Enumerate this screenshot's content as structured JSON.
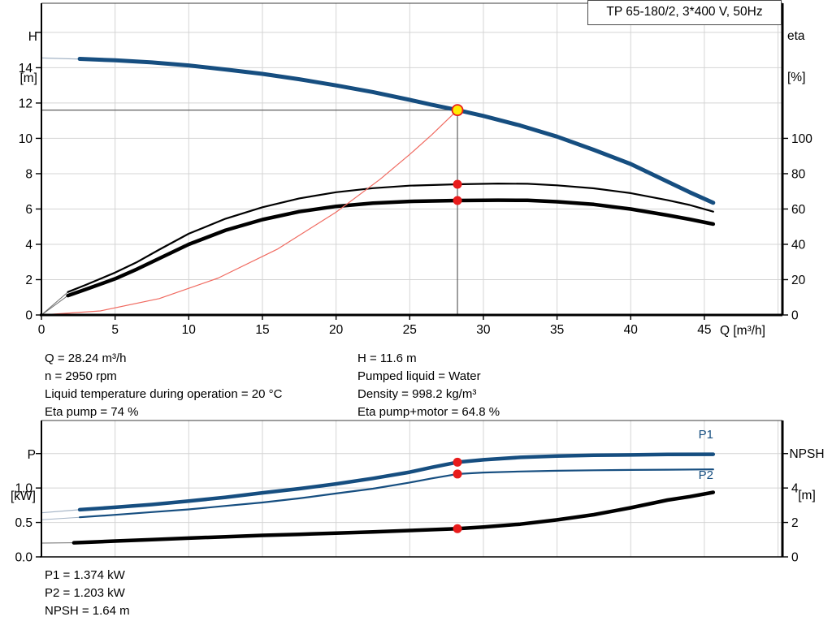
{
  "title_box": "TP 65-180/2, 3*400 V, 50Hz",
  "axis_corner_labels": {
    "top_left": [
      "H",
      "[m]"
    ],
    "top_right": [
      "eta",
      "[%]"
    ],
    "bottom_left": [
      "P",
      "[kW]"
    ],
    "bottom_right": [
      "NPSH",
      "[m]"
    ]
  },
  "info": {
    "left": [
      "Q = 28.24 m³/h",
      "n = 2950 rpm",
      "Liquid temperature during operation = 20 °C",
      "Eta pump = 74 %"
    ],
    "right": [
      "H = 11.6 m",
      "Pumped liquid = Water",
      "Density = 998.2 kg/m³",
      "Eta pump+motor = 64.8 %"
    ],
    "bottom": [
      "P1 = 1.374 kW",
      "P2 = 1.203 kW",
      "NPSH = 1.64 m"
    ]
  },
  "colors": {
    "curve_blue": "#164E80",
    "curve_black": "#000000",
    "system_red": "#f06a60",
    "marker_red": "#e81c1c",
    "duty_yellow": "#ffec00",
    "grid": "#d4d4d4",
    "guide": "#5f5f5f",
    "ext_blue": "#a4b4c6",
    "ext_gray": "#6e6e6e"
  },
  "chart_data": [
    {
      "type": "line",
      "title": "TP 65-180/2, 3*400 V, 50Hz",
      "xlabel": "Q [m³/h]",
      "ylabel_left": "H [m]",
      "ylabel_right": "eta [%]",
      "xlim": [
        0,
        50.3
      ],
      "ylim_left": [
        0,
        17.65
      ],
      "ylim_right": [
        0,
        176.5
      ],
      "grid": {
        "x": [
          5,
          10,
          15,
          20,
          25,
          30,
          35,
          40,
          45,
          50
        ],
        "left": [
          2,
          4,
          6,
          8,
          10,
          12,
          14,
          16
        ]
      },
      "axes": {
        "x": {
          "ticks": [
            0,
            5,
            10,
            15,
            20,
            25,
            30,
            35,
            40,
            45
          ],
          "tick_labels": [
            "0",
            "5",
            "10",
            "15",
            "20",
            "25",
            "30",
            "35",
            "40",
            "45"
          ]
        },
        "left": {
          "ticks": [
            0,
            2,
            4,
            6,
            8,
            10,
            12,
            14
          ],
          "tick_labels": [
            "0",
            "2",
            "4",
            "6",
            "8",
            "10",
            "12",
            "14"
          ],
          "extra_ticks": [
            16
          ]
        },
        "right": {
          "ticks": [
            0,
            20,
            40,
            60,
            80,
            100
          ],
          "tick_labels": [
            "0",
            "20",
            "40",
            "60",
            "80",
            "100"
          ],
          "extra_ticks": []
        }
      },
      "duty_point": {
        "Q": 28.24,
        "H": 11.6,
        "eta_pump": 74,
        "eta_pump_motor": 64.8
      },
      "series": [
        {
          "name": "hq-curve-ext",
          "axis": "left",
          "color": "#a4b4c6",
          "width": 1.2,
          "points": [
            [
              0,
              14.55
            ],
            [
              3,
              14.48
            ]
          ]
        },
        {
          "name": "hq-curve",
          "axis": "left",
          "color": "#164E80",
          "width": 5,
          "points": [
            [
              2.6,
              14.5
            ],
            [
              5,
              14.42
            ],
            [
              7.5,
              14.3
            ],
            [
              10,
              14.13
            ],
            [
              12.5,
              13.9
            ],
            [
              15,
              13.65
            ],
            [
              17.5,
              13.35
            ],
            [
              20,
              13.0
            ],
            [
              22.5,
              12.62
            ],
            [
              25,
              12.18
            ],
            [
              26.5,
              11.9
            ],
            [
              28.24,
              11.6
            ],
            [
              30,
              11.27
            ],
            [
              32.5,
              10.73
            ],
            [
              35,
              10.1
            ],
            [
              37.5,
              9.35
            ],
            [
              40,
              8.55
            ],
            [
              42.5,
              7.55
            ],
            [
              44,
              6.95
            ],
            [
              45.6,
              6.35
            ]
          ]
        },
        {
          "name": "eta-pump-curve-ext",
          "axis": "right",
          "color": "#6e6e6e",
          "width": 1,
          "points": [
            [
              0,
              0
            ],
            [
              1.8,
              13
            ]
          ]
        },
        {
          "name": "eta-pump-curve",
          "axis": "right",
          "color": "#000000",
          "width": 2.2,
          "points": [
            [
              1.8,
              13
            ],
            [
              3,
              17
            ],
            [
              5,
              24
            ],
            [
              6.5,
              30
            ],
            [
              8,
              37
            ],
            [
              10,
              46
            ],
            [
              12.5,
              54.5
            ],
            [
              15,
              61
            ],
            [
              17.5,
              66
            ],
            [
              20,
              69.5
            ],
            [
              22.5,
              71.8
            ],
            [
              25,
              73.2
            ],
            [
              28.24,
              74
            ],
            [
              31,
              74.4
            ],
            [
              33,
              74.3
            ],
            [
              35,
              73.4
            ],
            [
              37.5,
              71.7
            ],
            [
              40,
              69
            ],
            [
              42.5,
              65
            ],
            [
              44,
              62.3
            ],
            [
              45.6,
              58.5
            ]
          ]
        },
        {
          "name": "eta-pump-motor-curve-ext",
          "axis": "right",
          "color": "#6e6e6e",
          "width": 1,
          "points": [
            [
              0,
              0
            ],
            [
              1.8,
              11
            ]
          ]
        },
        {
          "name": "eta-pump-motor-curve",
          "axis": "right",
          "color": "#000000",
          "width": 4.5,
          "points": [
            [
              1.8,
              11
            ],
            [
              3,
              14.5
            ],
            [
              5,
              20.5
            ],
            [
              6.5,
              26
            ],
            [
              8,
              32
            ],
            [
              10,
              40
            ],
            [
              12.5,
              48
            ],
            [
              15,
              54
            ],
            [
              17.5,
              58.5
            ],
            [
              20,
              61.5
            ],
            [
              22.5,
              63.3
            ],
            [
              25,
              64.3
            ],
            [
              28.24,
              64.8
            ],
            [
              31,
              65
            ],
            [
              33,
              64.9
            ],
            [
              35,
              64.1
            ],
            [
              37.5,
              62.6
            ],
            [
              40,
              60
            ],
            [
              42.5,
              56.5
            ],
            [
              44,
              54.2
            ],
            [
              45.6,
              51.5
            ]
          ]
        },
        {
          "name": "system-curve",
          "axis": "left",
          "color": "#f06a60",
          "width": 1.2,
          "points": [
            [
              0,
              0
            ],
            [
              4,
              0.23
            ],
            [
              8,
              0.93
            ],
            [
              12,
              2.09
            ],
            [
              16,
              3.72
            ],
            [
              20,
              5.82
            ],
            [
              23,
              7.69
            ],
            [
              25,
              9.09
            ],
            [
              26.5,
              10.21
            ],
            [
              28.24,
              11.6
            ]
          ]
        }
      ],
      "guides": [
        {
          "type": "h",
          "axis": "left",
          "y": 11.6,
          "x1": 0,
          "x2": 28.24
        },
        {
          "type": "v",
          "axis": "left",
          "x": 28.24,
          "y1": 11.6,
          "y2": 0
        }
      ],
      "markers": [
        {
          "name": "eta-pump-duty-dot",
          "x": 28.24,
          "y": 74,
          "axis": "right",
          "r": 5.5,
          "fill": "#e81c1c",
          "stroke": "none",
          "sw": 0
        },
        {
          "name": "eta-pump-motor-duty-dot",
          "x": 28.24,
          "y": 64.8,
          "axis": "right",
          "r": 5.5,
          "fill": "#e81c1c",
          "stroke": "none",
          "sw": 0
        },
        {
          "name": "duty-point-marker",
          "x": 28.24,
          "y": 11.6,
          "axis": "left",
          "r": 6.5,
          "fill": "#ffec00",
          "stroke": "#e81c1c",
          "sw": 1.8
        }
      ],
      "labels": []
    },
    {
      "type": "line",
      "title": "",
      "xlabel": "",
      "ylabel_left": "P [kW]",
      "ylabel_right": "NPSH [m]",
      "xlim": [
        0,
        50.3
      ],
      "ylim_left": [
        0,
        1.98
      ],
      "ylim_right": [
        0,
        7.92
      ],
      "grid": {
        "x": [
          5,
          10,
          15,
          20,
          25,
          30,
          35,
          40,
          45,
          50
        ],
        "left": [
          0.5,
          1.0,
          1.5
        ]
      },
      "axes": {
        "x": {
          "ticks": [],
          "tick_labels": []
        },
        "left": {
          "ticks": [
            0,
            0.5,
            1.0
          ],
          "tick_labels": [
            "0.0",
            "0.5",
            "1.0"
          ],
          "extra_ticks": [
            1.5
          ]
        },
        "right": {
          "ticks": [
            0,
            2,
            4
          ],
          "tick_labels": [
            "0",
            "2",
            "4"
          ],
          "extra_ticks": [
            6
          ]
        }
      },
      "duty_point": {
        "Q": 28.24,
        "P1_kW": 1.374,
        "P2_kW": 1.203,
        "NPSH_m": 1.64
      },
      "series": [
        {
          "name": "p1-curve-ext",
          "axis": "left",
          "color": "#a4b4c6",
          "width": 1.2,
          "points": [
            [
              0,
              0.64
            ],
            [
              2.6,
              0.685
            ]
          ]
        },
        {
          "name": "p1-curve",
          "axis": "left",
          "color": "#164E80",
          "width": 4.5,
          "points": [
            [
              2.6,
              0.685
            ],
            [
              5,
              0.72
            ],
            [
              7.5,
              0.76
            ],
            [
              10,
              0.81
            ],
            [
              12.5,
              0.865
            ],
            [
              15,
              0.93
            ],
            [
              17.5,
              0.99
            ],
            [
              20,
              1.06
            ],
            [
              22.5,
              1.14
            ],
            [
              25,
              1.23
            ],
            [
              26.5,
              1.3
            ],
            [
              28.24,
              1.374
            ],
            [
              30,
              1.41
            ],
            [
              32.5,
              1.445
            ],
            [
              35,
              1.465
            ],
            [
              37.5,
              1.475
            ],
            [
              40,
              1.48
            ],
            [
              42.5,
              1.487
            ],
            [
              45.6,
              1.49
            ]
          ]
        },
        {
          "name": "p2-curve-ext",
          "axis": "left",
          "color": "#a4b4c6",
          "width": 1,
          "points": [
            [
              0,
              0.54
            ],
            [
              2.6,
              0.575
            ]
          ]
        },
        {
          "name": "p2-curve",
          "axis": "left",
          "color": "#164E80",
          "width": 2.2,
          "points": [
            [
              2.6,
              0.575
            ],
            [
              5,
              0.61
            ],
            [
              7.5,
              0.65
            ],
            [
              10,
              0.69
            ],
            [
              12.5,
              0.74
            ],
            [
              15,
              0.79
            ],
            [
              17.5,
              0.85
            ],
            [
              20,
              0.92
            ],
            [
              22.5,
              0.99
            ],
            [
              25,
              1.08
            ],
            [
              26.5,
              1.14
            ],
            [
              28.24,
              1.203
            ],
            [
              30,
              1.225
            ],
            [
              32.5,
              1.24
            ],
            [
              35,
              1.25
            ],
            [
              37.5,
              1.258
            ],
            [
              40,
              1.262
            ],
            [
              42.5,
              1.266
            ],
            [
              45.6,
              1.27
            ]
          ]
        },
        {
          "name": "npsh-curve-ext",
          "axis": "right",
          "color": "#6e6e6e",
          "width": 1,
          "points": [
            [
              0,
              0.8
            ],
            [
              2.2,
              0.82
            ]
          ]
        },
        {
          "name": "npsh-curve",
          "axis": "right",
          "color": "#000000",
          "width": 4.5,
          "points": [
            [
              2.2,
              0.82
            ],
            [
              5,
              0.92
            ],
            [
              7.5,
              1.0
            ],
            [
              10,
              1.09
            ],
            [
              12.5,
              1.17
            ],
            [
              15,
              1.25
            ],
            [
              17.5,
              1.31
            ],
            [
              20,
              1.38
            ],
            [
              22.5,
              1.45
            ],
            [
              25,
              1.53
            ],
            [
              28.24,
              1.64
            ],
            [
              30,
              1.73
            ],
            [
              32.5,
              1.9
            ],
            [
              35,
              2.15
            ],
            [
              37.5,
              2.45
            ],
            [
              40,
              2.85
            ],
            [
              42.5,
              3.3
            ],
            [
              44,
              3.5
            ],
            [
              45.6,
              3.75
            ]
          ]
        }
      ],
      "guides": [],
      "markers": [
        {
          "name": "p1-duty-dot",
          "x": 28.24,
          "y": 1.374,
          "axis": "left",
          "r": 5.5,
          "fill": "#e81c1c",
          "stroke": "none",
          "sw": 0
        },
        {
          "name": "p2-duty-dot",
          "x": 28.24,
          "y": 1.203,
          "axis": "left",
          "r": 5.5,
          "fill": "#e81c1c",
          "stroke": "none",
          "sw": 0
        },
        {
          "name": "npsh-duty-dot",
          "x": 28.24,
          "y": 1.64,
          "axis": "right",
          "r": 5.5,
          "fill": "#e81c1c",
          "stroke": "none",
          "sw": 0
        }
      ],
      "labels": [
        {
          "name": "p1-curve-label",
          "text": "P1",
          "x": 44.6,
          "y": 1.72,
          "axis": "left",
          "color": "#164E80"
        },
        {
          "name": "p2-curve-label",
          "text": "P2",
          "x": 44.6,
          "y": 1.13,
          "axis": "left",
          "color": "#164E80"
        }
      ]
    }
  ]
}
